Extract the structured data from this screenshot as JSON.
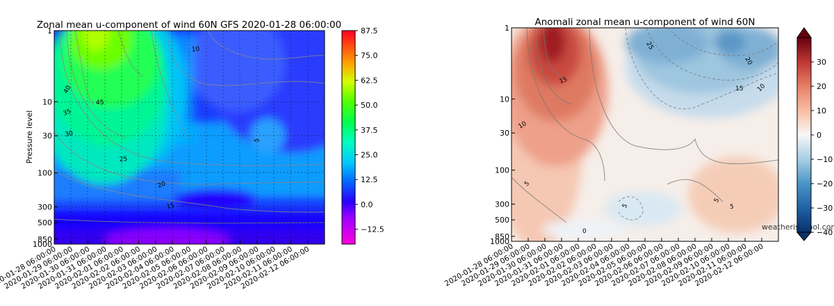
{
  "chart_data": [
    {
      "type": "heatmap",
      "title": "Zonal mean u-component of wind 60N GFS 2020-01-28 06:00:00",
      "xlabel": "",
      "ylabel": "Pressure level",
      "y_scale": "log",
      "y_inverted": true,
      "y_ticks": [
        "1",
        "10",
        "30",
        "100",
        "300",
        "500",
        "850",
        "1000"
      ],
      "x_ticks": [
        "2020-01-28 06:00:00",
        "2020-01-29 06:00:00",
        "2020-01-30 06:00:00",
        "2020-01-31 06:00:00",
        "2020-02-01 06:00:00",
        "2020-02-02 06:00:00",
        "2020-02-03 06:00:00",
        "2020-02-04 06:00:00",
        "2020-02-05 06:00:00",
        "2020-02-06 06:00:00",
        "2020-02-07 06:00:00",
        "2020-02-08 06:00:00",
        "2020-02-09 06:00:00",
        "2020-02-10 06:00:00",
        "2020-02-11 06:00:00",
        "2020-02-12 06:00:00"
      ],
      "grid": true,
      "colorbar": {
        "colormap": "gist_rainbow",
        "ticks": [
          "87.5",
          "75.0",
          "62.5",
          "50.0",
          "37.5",
          "25.0",
          "12.5",
          "0.0",
          "−12.5"
        ],
        "range": [
          -20,
          87.5
        ]
      },
      "contour_labels": [
        "40",
        "35",
        "30",
        "25",
        "20",
        "15",
        "10",
        "5",
        "45"
      ]
    },
    {
      "type": "heatmap",
      "title": "Anomali zonal mean u-component of wind 60N",
      "xlabel": "",
      "ylabel": "",
      "y_scale": "log",
      "y_inverted": true,
      "y_ticks": [
        "1",
        "10",
        "30",
        "100",
        "300",
        "500",
        "850",
        "1000"
      ],
      "x_ticks": [
        "2020-01-28 06:00:00",
        "2020-01-29 06:00:00",
        "2020-01-30 06:00:00",
        "2020-01-31 06:00:00",
        "2020-02-01 06:00:00",
        "2020-02-02 06:00:00",
        "2020-02-03 06:00:00",
        "2020-02-04 06:00:00",
        "2020-02-05 06:00:00",
        "2020-02-06 06:00:00",
        "2020-02-07 06:00:00",
        "2020-02-08 06:00:00",
        "2020-02-09 06:00:00",
        "2020-02-10 06:00:00",
        "2020-02-11 06:00:00",
        "2020-02-12 06:00:00"
      ],
      "grid": false,
      "colorbar": {
        "colormap": "RdBu_r",
        "ticks": [
          "30",
          "20",
          "10",
          "0",
          "−10",
          "−20",
          "−30",
          "−40"
        ],
        "range": [
          -40,
          40
        ]
      },
      "contour_labels": [
        "25",
        "15",
        "10",
        "5",
        "20",
        "15",
        "10",
        "5",
        "5",
        "5",
        "0"
      ]
    }
  ],
  "watermark": "weatherisocool.com"
}
